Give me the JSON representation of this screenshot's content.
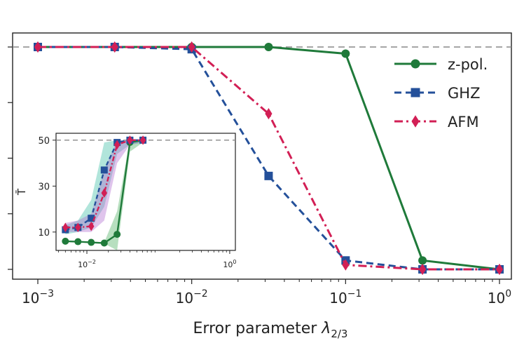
{
  "chart_data": [
    {
      "type": "line",
      "xscale": "log",
      "xlim": [
        0.001,
        1
      ],
      "ylim": [
        0,
        1
      ],
      "xlabel_prefix": "Error parameter ",
      "xlabel_symbol": "λ",
      "xlabel_subscript": "2/3",
      "ylabel": "",
      "x_ticks": [
        {
          "value": 0.001,
          "base": "10",
          "exp": "−3"
        },
        {
          "value": 0.01,
          "base": "10",
          "exp": "−2"
        },
        {
          "value": 0.1,
          "base": "10",
          "exp": "−1"
        },
        {
          "value": 1,
          "base": "10",
          "exp": "0"
        }
      ],
      "y_ticks": [
        0.0,
        0.25,
        0.5,
        0.75,
        1.0
      ],
      "reference_line_y": 1.0,
      "legend_position": "top-right",
      "series": [
        {
          "name": "z-pol.",
          "color": "#1f7a3a",
          "marker": "circle",
          "linestyle": "solid",
          "x": [
            0.001,
            0.00316,
            0.01,
            0.0316,
            0.1,
            0.316,
            1
          ],
          "y": [
            1.0,
            1.0,
            1.0,
            1.0,
            0.97,
            0.04,
            0.0
          ]
        },
        {
          "name": "GHZ",
          "color": "#24509a",
          "marker": "square",
          "linestyle": "dashed",
          "x": [
            0.001,
            0.00316,
            0.01,
            0.0316,
            0.1,
            0.316,
            1
          ],
          "y": [
            1.0,
            1.0,
            0.99,
            0.42,
            0.04,
            0.0,
            0.0
          ]
        },
        {
          "name": "AFM",
          "color": "#d21f55",
          "marker": "diamond",
          "linestyle": "dashdot",
          "x": [
            0.001,
            0.00316,
            0.01,
            0.0316,
            0.1,
            0.316,
            1
          ],
          "y": [
            1.0,
            1.0,
            1.0,
            0.7,
            0.02,
            0.0,
            0.0
          ]
        }
      ]
    },
    {
      "type": "line",
      "xscale": "log",
      "xlim": [
        0.0037,
        1.2
      ],
      "ylim": [
        2,
        53
      ],
      "ylabel": "T̄",
      "x_ticks": [
        {
          "value": 0.01,
          "base": "10",
          "exp": "−2"
        },
        {
          "value": 1,
          "base": "10",
          "exp": "0"
        }
      ],
      "y_ticks": [
        10,
        30,
        50
      ],
      "reference_line_y": 50,
      "series": [
        {
          "name": "z-pol.",
          "color": "#1f7a3a",
          "marker": "circle",
          "linestyle": "solid",
          "band_color": "#4ab060",
          "x": [
            0.005,
            0.0075,
            0.0115,
            0.0175,
            0.0265,
            0.04,
            0.061
          ],
          "y": [
            6,
            5.8,
            5.5,
            5.2,
            9,
            49,
            50
          ],
          "y_low": [
            6,
            5.8,
            5.5,
            5,
            2,
            45,
            49
          ],
          "y_high": [
            6,
            5.8,
            5.5,
            5.5,
            19,
            50,
            50
          ]
        },
        {
          "name": "GHZ",
          "color": "#24509a",
          "marker": "square",
          "linestyle": "dashed",
          "band_color": "#3bbfa6",
          "x": [
            0.005,
            0.0075,
            0.0115,
            0.0175,
            0.0265,
            0.04,
            0.061
          ],
          "y": [
            11,
            12,
            16,
            37,
            49,
            50,
            50
          ],
          "y_low": [
            9,
            10,
            12,
            21,
            44,
            48,
            49
          ],
          "y_high": [
            13,
            15,
            24,
            49,
            50,
            50,
            50
          ]
        },
        {
          "name": "AFM",
          "color": "#d21f55",
          "marker": "diamond",
          "linestyle": "dashdot",
          "band_color": "#b06cd0",
          "x": [
            0.005,
            0.0075,
            0.0115,
            0.0175,
            0.0265,
            0.04,
            0.061
          ],
          "y": [
            12,
            12,
            12.5,
            27,
            48,
            50,
            50
          ],
          "y_low": [
            10,
            10,
            10,
            15,
            40,
            48,
            49
          ],
          "y_high": [
            14,
            15,
            18,
            37,
            50,
            50,
            50
          ]
        }
      ]
    }
  ]
}
